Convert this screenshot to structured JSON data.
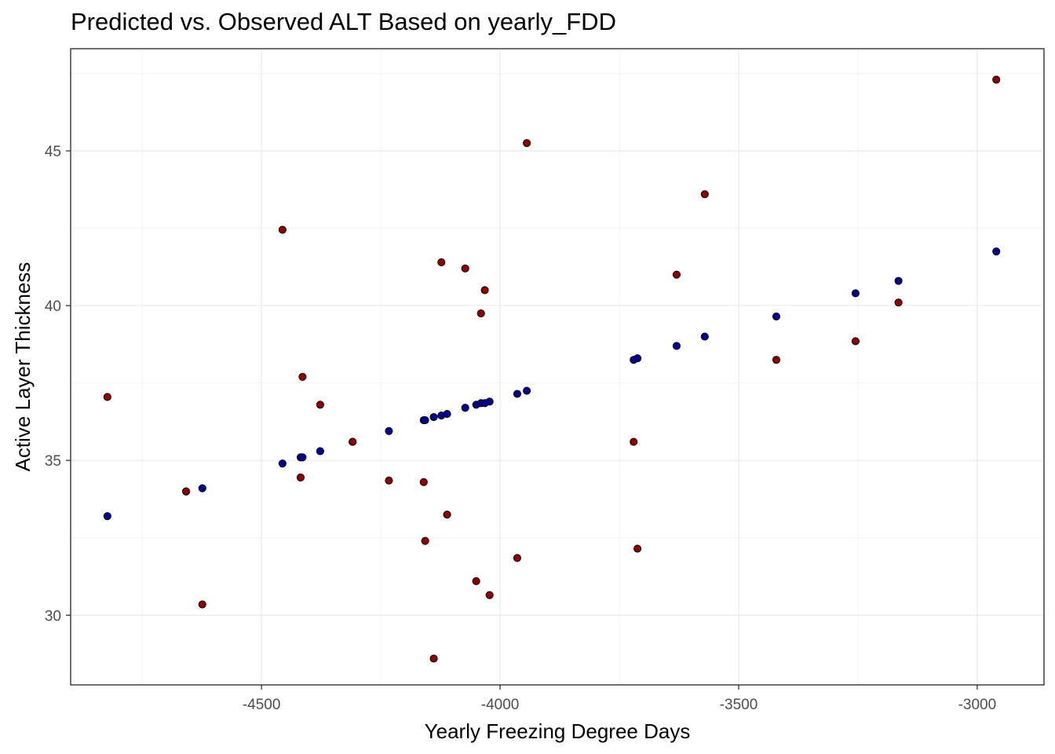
{
  "chart_data": {
    "type": "scatter",
    "title": "Predicted vs. Observed ALT Based on yearly_FDD",
    "xlabel": "Yearly Freezing Degree Days",
    "ylabel": "Active Layer Thickness",
    "xlim": [
      -4900,
      -2860
    ],
    "ylim": [
      27.75,
      48.3
    ],
    "x_ticks": [
      -4500,
      -4000,
      -3500,
      -3000
    ],
    "x_tick_labels": [
      "-4500",
      "-4000",
      "-3500",
      "-3000"
    ],
    "y_ticks": [
      30,
      35,
      40,
      45
    ],
    "y_tick_labels": [
      "30",
      "35",
      "40",
      "45"
    ],
    "grid": true,
    "legend": "none",
    "series": [
      {
        "color": "#00008b",
        "points": [
          [
            -4823,
            33.2
          ],
          [
            -4658,
            34.0
          ],
          [
            -4624,
            34.1
          ],
          [
            -4456,
            34.9
          ],
          [
            -4418,
            35.1
          ],
          [
            -4414,
            35.1
          ],
          [
            -4377,
            35.3
          ],
          [
            -4309,
            35.6
          ],
          [
            -4233,
            35.95
          ],
          [
            -4160,
            36.3
          ],
          [
            -4157,
            36.3
          ],
          [
            -4139,
            36.4
          ],
          [
            -4123,
            36.45
          ],
          [
            -4111,
            36.5
          ],
          [
            -4073,
            36.7
          ],
          [
            -4050,
            36.8
          ],
          [
            -4040,
            36.85
          ],
          [
            -4032,
            36.85
          ],
          [
            -4022,
            36.9
          ],
          [
            -3964,
            37.15
          ],
          [
            -3944,
            37.25
          ],
          [
            -3720,
            38.25
          ],
          [
            -3712,
            38.3
          ],
          [
            -3630,
            38.7
          ],
          [
            -3571,
            39.0
          ],
          [
            -3421,
            39.65
          ],
          [
            -3255,
            40.4
          ],
          [
            -3165,
            40.8
          ],
          [
            -2960,
            41.75
          ]
        ]
      },
      {
        "color": "#8b0000",
        "points": [
          [
            -4823,
            37.05
          ],
          [
            -4658,
            34.0
          ],
          [
            -4624,
            30.35
          ],
          [
            -4456,
            42.45
          ],
          [
            -4418,
            34.45
          ],
          [
            -4414,
            37.7
          ],
          [
            -4377,
            36.8
          ],
          [
            -4309,
            35.6
          ],
          [
            -4233,
            34.35
          ],
          [
            -4160,
            34.3
          ],
          [
            -4157,
            32.4
          ],
          [
            -4139,
            28.6
          ],
          [
            -4123,
            41.4
          ],
          [
            -4111,
            33.25
          ],
          [
            -4073,
            41.2
          ],
          [
            -4050,
            31.1
          ],
          [
            -4040,
            39.75
          ],
          [
            -4032,
            40.5
          ],
          [
            -4022,
            30.65
          ],
          [
            -3964,
            31.85
          ],
          [
            -3944,
            45.25
          ],
          [
            -3720,
            35.6
          ],
          [
            -3712,
            32.15
          ],
          [
            -3630,
            41.0
          ],
          [
            -3571,
            43.6
          ],
          [
            -3421,
            38.25
          ],
          [
            -3255,
            38.85
          ],
          [
            -3165,
            40.1
          ],
          [
            -2960,
            47.3
          ]
        ]
      }
    ]
  }
}
